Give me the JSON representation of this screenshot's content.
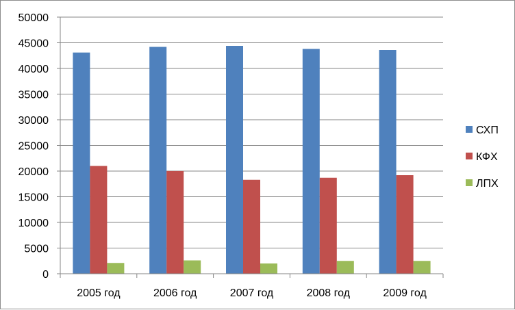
{
  "chart_data": {
    "type": "bar",
    "title": "",
    "xlabel": "",
    "ylabel": "",
    "categories": [
      "2005 год",
      "2006 год",
      "2007 год",
      "2008 год",
      "2009 год"
    ],
    "series": [
      {
        "name": "СХП",
        "color": "#4F81BD",
        "values": [
          43100,
          44200,
          44400,
          43800,
          43600
        ]
      },
      {
        "name": "КФХ",
        "color": "#C0504D",
        "values": [
          21000,
          20000,
          18300,
          18700,
          19200
        ]
      },
      {
        "name": "ЛПХ",
        "color": "#9BBB59",
        "values": [
          2100,
          2600,
          2000,
          2500,
          2500
        ]
      }
    ],
    "ylim": [
      0,
      50000
    ],
    "yticks": [
      "0",
      "5000",
      "10000",
      "15000",
      "20000",
      "25000",
      "30000",
      "35000",
      "40000",
      "45000",
      "50000"
    ],
    "grid": true,
    "legend_position": "right"
  }
}
